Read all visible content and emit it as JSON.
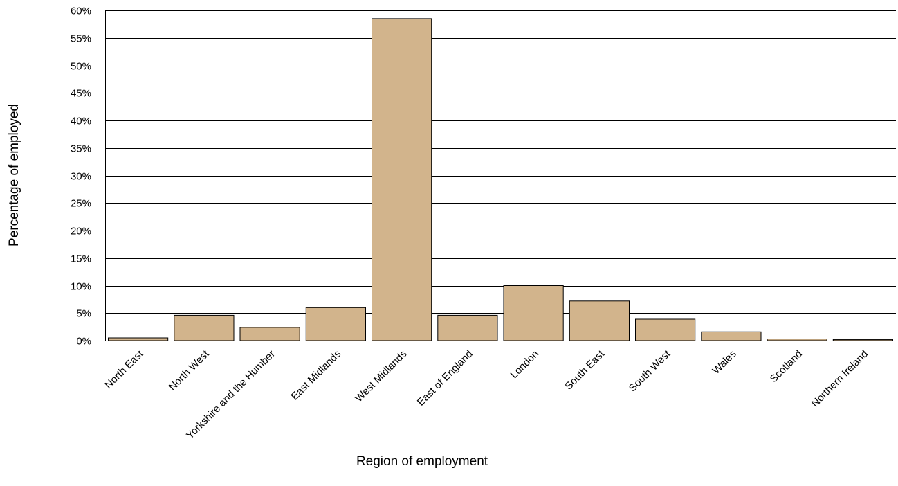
{
  "chart_data": {
    "type": "bar",
    "title": "",
    "xlabel": "Region of employment",
    "ylabel": "Percentage of employed",
    "categories": [
      "North East",
      "North West",
      "Yorkshire and the Humber",
      "East Midlands",
      "West Midlands",
      "East of England",
      "London",
      "South East",
      "South West",
      "Wales",
      "Scotland",
      "Northern Ireland"
    ],
    "values": [
      0.5,
      4.6,
      2.4,
      6.0,
      58.5,
      4.6,
      10.0,
      7.2,
      3.9,
      1.6,
      0.3,
      0.2
    ],
    "ylim": [
      0,
      60
    ],
    "yticks": [
      0,
      5,
      10,
      15,
      20,
      25,
      30,
      35,
      40,
      45,
      50,
      55,
      60
    ],
    "ytick_labels": [
      "0%",
      "5%",
      "10%",
      "15%",
      "20%",
      "25%",
      "30%",
      "35%",
      "40%",
      "45%",
      "50%",
      "55%",
      "60%"
    ],
    "grid": true,
    "legend": "none",
    "colors": {
      "bar_fill": "#D2B48C",
      "bar_stroke": "#000000",
      "grid": "#000000"
    }
  }
}
